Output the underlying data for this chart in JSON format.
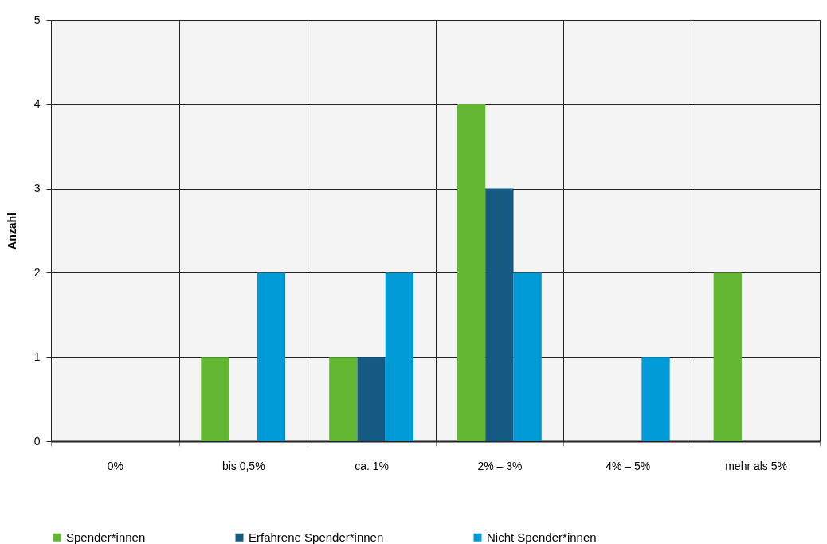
{
  "chart_data": {
    "type": "bar",
    "ylabel": "Anzahl",
    "categories": [
      "0%",
      "bis 0,5%",
      "ca. 1%",
      "2% – 3%",
      "4% – 5%",
      "mehr als 5%"
    ],
    "series": [
      {
        "name": "Spender*innen",
        "color": "#62b832",
        "values": [
          0,
          1,
          1,
          4,
          0,
          2
        ]
      },
      {
        "name": "Erfahrene Spender*innen",
        "color": "#145a82",
        "values": [
          0,
          0,
          1,
          3,
          0,
          0
        ]
      },
      {
        "name": "Nicht Spender*innen",
        "color": "#009ad6",
        "values": [
          0,
          2,
          2,
          2,
          1,
          0
        ]
      }
    ],
    "ylim": [
      0,
      5
    ],
    "yticks": [
      0,
      1,
      2,
      3,
      4,
      5
    ],
    "grid": true,
    "legend": "bottom"
  }
}
